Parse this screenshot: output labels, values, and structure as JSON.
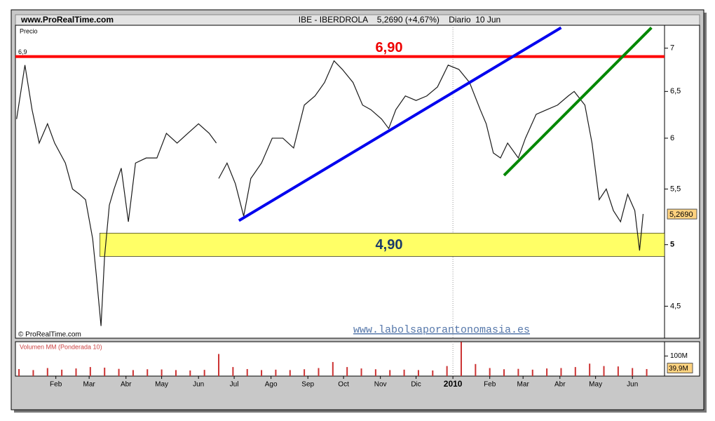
{
  "chart_data": {
    "type": "line",
    "site": "www.ProRealTime.com",
    "title": "IBE - IBERDROLA    5,2690 (+4,67%)    Diario  10 Jun",
    "y_label": "Precio",
    "copyright": "© ProRealTime.com",
    "watermark": "www.labolsaporantonomasia.es",
    "log_scale": true,
    "ylim": [
      4.26,
      7.28
    ],
    "yticks": [
      7,
      {
        "value": 6.5,
        "label": "6,5"
      },
      6,
      {
        "value": 5.5,
        "label": "5,5"
      },
      5,
      {
        "value": 4.5,
        "label": "4,5"
      }
    ],
    "xlim": [
      -3,
      543
    ],
    "xticks": [
      {
        "value": 31,
        "label": "Feb"
      },
      {
        "value": 59,
        "label": "Mar"
      },
      {
        "value": 90,
        "label": "Abr"
      },
      {
        "value": 120,
        "label": "May"
      },
      {
        "value": 151,
        "label": "Jun"
      },
      {
        "value": 181,
        "label": "Jul"
      },
      {
        "value": 212,
        "label": "Ago"
      },
      {
        "value": 243,
        "label": "Sep"
      },
      {
        "value": 273,
        "label": "Oct"
      },
      {
        "value": 304,
        "label": "Nov"
      },
      {
        "value": 334,
        "label": "Dic"
      },
      {
        "value": 365,
        "label": "2010"
      },
      {
        "value": 396,
        "label": "Feb"
      },
      {
        "value": 424,
        "label": "Mar"
      },
      {
        "value": 455,
        "label": "Abr"
      },
      {
        "value": 485,
        "label": "May"
      },
      {
        "value": 516,
        "label": "Jun"
      }
    ],
    "x": [
      -2,
      5,
      11,
      17,
      24,
      30,
      39,
      45,
      51,
      56,
      62,
      65,
      69,
      72,
      76,
      80,
      86,
      92,
      98,
      107,
      116,
      124,
      133,
      142,
      151,
      160,
      166,
      167,
      168,
      175,
      182,
      189,
      195,
      204,
      213,
      222,
      231,
      240,
      249,
      257,
      265,
      272,
      281,
      289,
      296,
      305,
      311,
      317,
      325,
      334,
      343,
      352,
      361,
      370,
      379,
      388,
      393,
      399,
      405,
      411,
      420,
      426,
      435,
      444,
      453,
      462,
      467,
      476,
      482,
      488,
      494,
      500,
      506,
      512,
      518,
      522,
      525
    ],
    "series": [
      {
        "name": "IBE - IBERDROLA",
        "color": "#1a1a1a",
        "values": [
          6.2,
          6.8,
          6.3,
          5.95,
          6.15,
          5.95,
          5.75,
          5.5,
          5.45,
          5.4,
          5.05,
          4.75,
          4.35,
          4.9,
          5.35,
          5.5,
          5.7,
          5.2,
          5.75,
          5.8,
          5.8,
          6.05,
          5.95,
          6.05,
          6.15,
          6.05,
          5.95,
          null,
          5.6,
          5.75,
          5.55,
          5.25,
          5.6,
          5.75,
          6.0,
          6.0,
          5.9,
          6.35,
          6.45,
          6.6,
          6.85,
          6.75,
          6.6,
          6.35,
          6.3,
          6.2,
          6.1,
          6.3,
          6.45,
          6.4,
          6.45,
          6.55,
          6.8,
          6.75,
          6.6,
          6.3,
          6.15,
          5.85,
          5.8,
          5.95,
          5.8,
          6.0,
          6.25,
          6.3,
          6.35,
          6.45,
          6.5,
          6.35,
          5.95,
          5.4,
          5.5,
          5.3,
          5.2,
          5.45,
          5.3,
          4.95,
          5.27
        ]
      }
    ],
    "last_price": {
      "value": 5.269,
      "label": "5,2690"
    },
    "resistance": {
      "value": 6.9,
      "label": "6,90",
      "axis_label": "6,9",
      "color": "#ff0000"
    },
    "support": {
      "low": 4.9,
      "high": 5.1,
      "label": "4,90",
      "start": 68,
      "color": "#ffff66"
    },
    "trendlines": [
      {
        "color": "#0000ee",
        "x": [
          185,
          456
        ],
        "values": [
          5.21,
          7.25
        ]
      },
      {
        "color": "#008800",
        "x": [
          408,
          532
        ],
        "values": [
          5.63,
          7.25
        ]
      }
    ],
    "volume": {
      "label": "Volumen MM (Ponderada 10)",
      "ylim": [
        0,
        171
      ],
      "yticks": [
        {
          "value": 100,
          "label": "100M"
        }
      ],
      "last": {
        "value": 39.9,
        "label": "39,9M"
      },
      "color": "#cc3333",
      "x": [
        0,
        12,
        24,
        36,
        48,
        60,
        72,
        84,
        96,
        108,
        120,
        132,
        144,
        156,
        168,
        180,
        192,
        204,
        216,
        228,
        240,
        252,
        264,
        276,
        288,
        300,
        312,
        324,
        336,
        348,
        360,
        372,
        384,
        396,
        408,
        420,
        432,
        444,
        456,
        468,
        480,
        492,
        504,
        516,
        528
      ],
      "values": [
        35,
        30,
        40,
        32,
        38,
        45,
        42,
        36,
        30,
        34,
        33,
        30,
        28,
        31,
        110,
        45,
        35,
        30,
        32,
        30,
        34,
        40,
        70,
        45,
        38,
        34,
        30,
        32,
        30,
        28,
        50,
        170,
        60,
        40,
        34,
        36,
        32,
        38,
        40,
        45,
        62,
        50,
        48,
        40,
        35
      ]
    }
  }
}
